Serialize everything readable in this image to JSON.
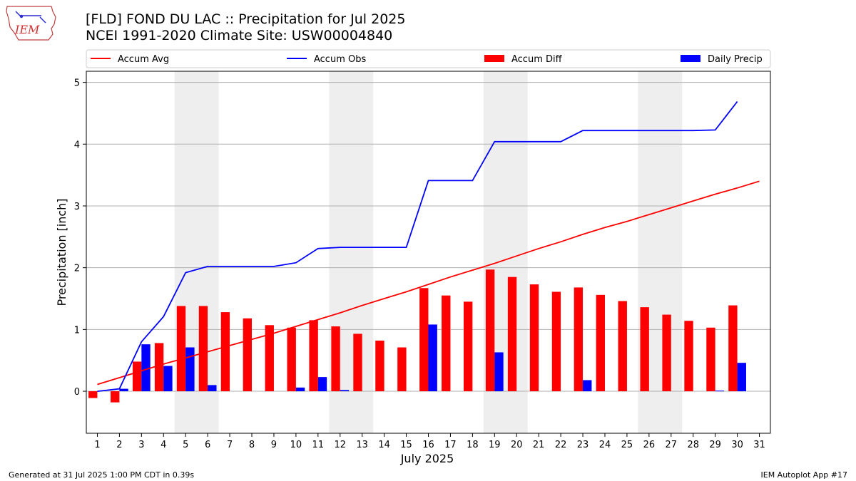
{
  "header": {
    "title_line1": "[FLD] FOND DU LAC :: Precipitation for Jul 2025",
    "title_line2": "NCEI 1991-2020 Climate Site: USW00004840",
    "logo_text": "IEM"
  },
  "footer": {
    "generated": "Generated at 31 Jul 2025 1:00 PM CDT in 0.39s",
    "app": "IEM Autoplot App #17"
  },
  "colors": {
    "accum_avg": "#ff0000",
    "accum_obs": "#0000ff",
    "accum_diff": "#ff0000",
    "daily_precip": "#0000ff",
    "weekend_shade": "#eeeeee",
    "grid": "#b0b0b0"
  },
  "chart_data": {
    "type": "bar",
    "xlabel": "July 2025",
    "ylabel": "Precipitation [inch]",
    "ylim": [
      -0.68,
      5.18
    ],
    "yticks": [
      0,
      1,
      2,
      3,
      4,
      5
    ],
    "xlim": [
      0.5,
      31.5
    ],
    "days": [
      1,
      2,
      3,
      4,
      5,
      6,
      7,
      8,
      9,
      10,
      11,
      12,
      13,
      14,
      15,
      16,
      17,
      18,
      19,
      20,
      21,
      22,
      23,
      24,
      25,
      26,
      27,
      28,
      29,
      30,
      31
    ],
    "grid": "horizontal",
    "legend_position": "top",
    "weekend_spans": [
      [
        4.5,
        6.5
      ],
      [
        11.5,
        13.5
      ],
      [
        18.5,
        20.5
      ],
      [
        25.5,
        27.5
      ]
    ],
    "series": [
      {
        "name": "Accum Avg",
        "kind": "line",
        "x": [
          1,
          2,
          3,
          4,
          5,
          6,
          7,
          8,
          9,
          10,
          11,
          12,
          13,
          14,
          15,
          16,
          17,
          18,
          19,
          20,
          21,
          22,
          23,
          24,
          25,
          26,
          27,
          28,
          29,
          30,
          31
        ],
        "values": [
          0.11,
          0.22,
          0.33,
          0.44,
          0.54,
          0.64,
          0.74,
          0.84,
          0.94,
          1.05,
          1.16,
          1.27,
          1.39,
          1.5,
          1.61,
          1.73,
          1.85,
          1.96,
          2.07,
          2.19,
          2.31,
          2.42,
          2.54,
          2.65,
          2.75,
          2.86,
          2.97,
          3.08,
          3.19,
          3.29,
          3.4
        ]
      },
      {
        "name": "Accum Obs",
        "kind": "line",
        "x": [
          1,
          2,
          3,
          4,
          5,
          6,
          7,
          8,
          9,
          10,
          11,
          12,
          13,
          14,
          15,
          16,
          17,
          18,
          19,
          20,
          21,
          22,
          23,
          24,
          25,
          26,
          27,
          28,
          29,
          30
        ],
        "values": [
          0.0,
          0.04,
          0.8,
          1.21,
          1.92,
          2.02,
          2.02,
          2.02,
          2.02,
          2.08,
          2.31,
          2.33,
          2.33,
          2.33,
          2.33,
          3.41,
          3.41,
          3.41,
          4.04,
          4.04,
          4.04,
          4.04,
          4.22,
          4.22,
          4.22,
          4.22,
          4.22,
          4.22,
          4.23,
          4.69
        ]
      },
      {
        "name": "Accum Diff",
        "kind": "bar",
        "x": [
          1,
          2,
          3,
          4,
          5,
          6,
          7,
          8,
          9,
          10,
          11,
          12,
          13,
          14,
          15,
          16,
          17,
          18,
          19,
          20,
          21,
          22,
          23,
          24,
          25,
          26,
          27,
          28,
          29,
          30
        ],
        "values": [
          -0.11,
          -0.18,
          0.48,
          0.78,
          1.38,
          1.38,
          1.28,
          1.18,
          1.07,
          1.03,
          1.15,
          1.05,
          0.93,
          0.82,
          0.71,
          1.67,
          1.55,
          1.45,
          1.97,
          1.85,
          1.73,
          1.61,
          1.68,
          1.56,
          1.46,
          1.36,
          1.24,
          1.14,
          1.03,
          1.39
        ]
      },
      {
        "name": "Daily Precip",
        "kind": "bar",
        "x": [
          1,
          2,
          3,
          4,
          5,
          6,
          7,
          8,
          9,
          10,
          11,
          12,
          13,
          14,
          15,
          16,
          17,
          18,
          19,
          20,
          21,
          22,
          23,
          24,
          25,
          26,
          27,
          28,
          29,
          30
        ],
        "values": [
          0.0,
          0.04,
          0.76,
          0.41,
          0.71,
          0.1,
          0.0,
          0.0,
          0.0,
          0.06,
          0.23,
          0.02,
          0.0,
          0.0,
          0.0,
          1.08,
          0.0,
          0.0,
          0.63,
          0.0,
          0.0,
          0.0,
          0.18,
          0.0,
          0.0,
          0.0,
          0.0,
          0.0,
          0.01,
          0.46
        ]
      }
    ]
  }
}
